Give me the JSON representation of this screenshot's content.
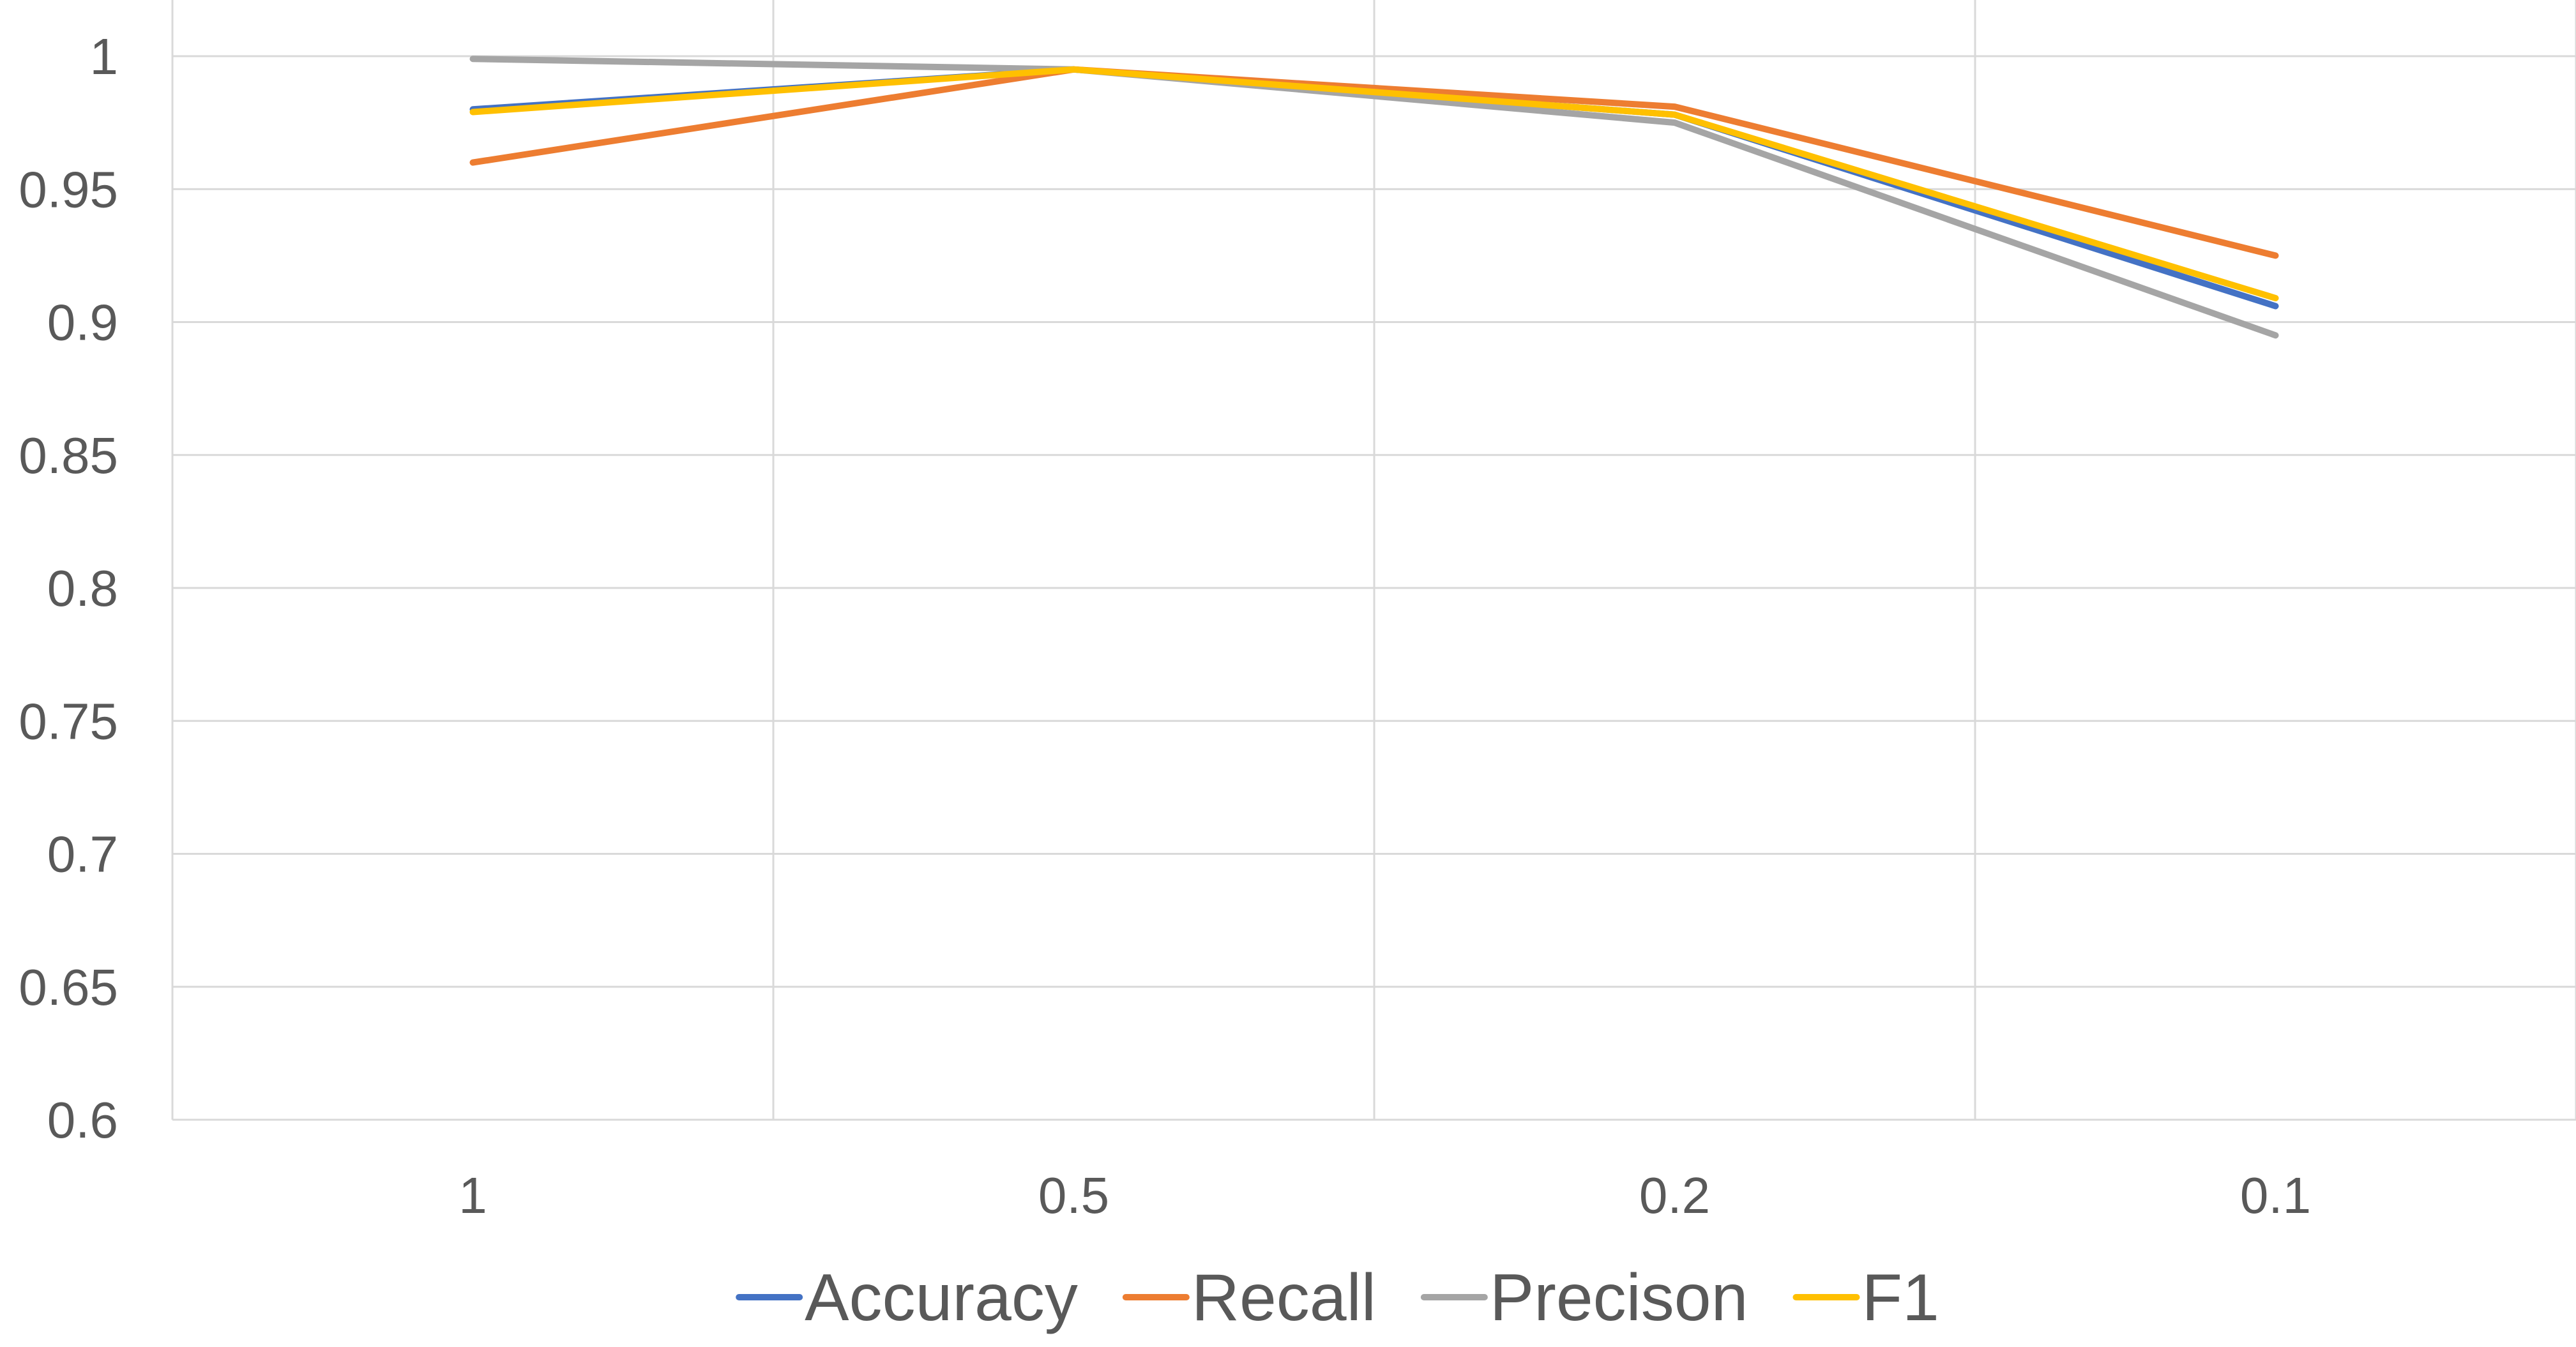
{
  "chart_data": {
    "type": "line",
    "title": "",
    "xlabel": "",
    "ylabel": "",
    "categories": [
      "1",
      "0.5",
      "0.2",
      "0.1"
    ],
    "ylim": [
      0.6,
      1
    ],
    "yticks": [
      0.6,
      0.65,
      0.7,
      0.75,
      0.8,
      0.85,
      0.9,
      0.95,
      1
    ],
    "ytick_labels": [
      "0.6",
      "0.65",
      "0.7",
      "0.75",
      "0.8",
      "0.85",
      "0.9",
      "0.95",
      "1"
    ],
    "grid": true,
    "legend_position": "bottom",
    "series": [
      {
        "name": "Accuracy",
        "color": "#4472C4",
        "values": [
          0.98,
          0.995,
          0.978,
          0.906
        ]
      },
      {
        "name": "Recall",
        "color": "#ED7D31",
        "values": [
          0.96,
          0.995,
          0.981,
          0.925
        ]
      },
      {
        "name": "Precison",
        "color": "#A5A5A5",
        "values": [
          0.999,
          0.995,
          0.975,
          0.895
        ]
      },
      {
        "name": "F1",
        "color": "#FFC000",
        "values": [
          0.979,
          0.995,
          0.978,
          0.909
        ]
      }
    ]
  }
}
